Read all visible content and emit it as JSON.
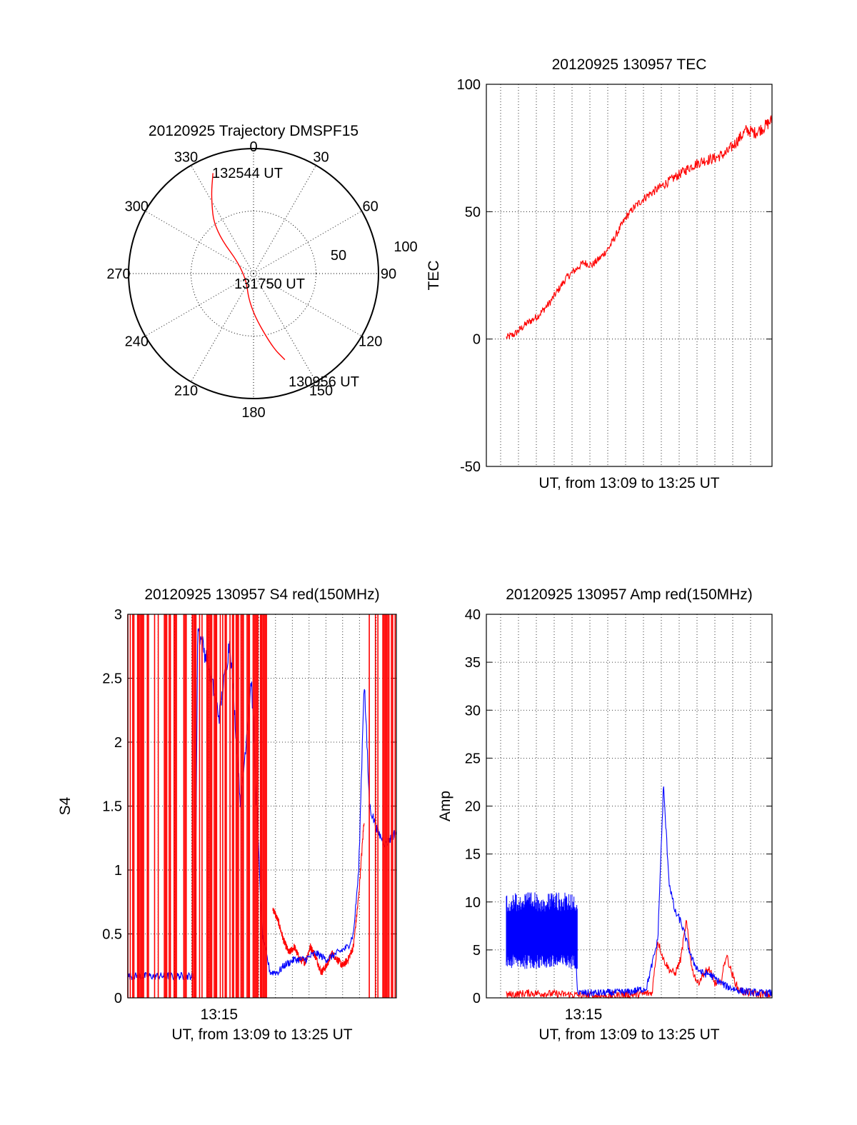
{
  "chart_data": [
    {
      "type": "polar",
      "title": "20120925 Trajectory DMSPF15",
      "angle_ticks": [
        "0",
        "30",
        "60",
        "90",
        "120",
        "150",
        "180",
        "210",
        "240",
        "270",
        "300",
        "330"
      ],
      "radial_ticks": [
        "50",
        "100"
      ],
      "trajectory": {
        "color": "#ff0000",
        "points": [
          {
            "az": 338,
            "el": 12
          },
          {
            "az": 331,
            "el": 27
          },
          {
            "az": 318,
            "el": 48
          },
          {
            "az": 280,
            "el": 84
          },
          {
            "az": 187,
            "el": 66
          },
          {
            "az": 166,
            "el": 36
          },
          {
            "az": 160,
            "el": 24
          }
        ]
      },
      "annotations": [
        "132544 UT",
        "131750 UT",
        "130956 UT"
      ]
    },
    {
      "type": "line",
      "title": "20120925 130957 TEC",
      "xlabel": "UT, from 13:09 to 13:25 UT",
      "ylabel": "TEC",
      "xlim": [
        0,
        1
      ],
      "ylim": [
        -50,
        100
      ],
      "yticks": [
        "-50",
        "0",
        "50",
        "100"
      ],
      "grid": true,
      "series": [
        {
          "color": "#ff0000",
          "x": [
            0.07,
            0.1,
            0.14,
            0.18,
            0.22,
            0.25,
            0.28,
            0.31,
            0.34,
            0.37,
            0.4,
            0.43,
            0.46,
            0.49,
            0.52,
            0.56,
            0.6,
            0.64,
            0.68,
            0.72,
            0.76,
            0.8,
            0.84,
            0.88,
            0.91,
            0.94,
            0.97,
            1.0
          ],
          "y": [
            0.5,
            2,
            6,
            9,
            14,
            19,
            24,
            27,
            30,
            29,
            32,
            36,
            42,
            48,
            52,
            56,
            59,
            62,
            65,
            68,
            70,
            71,
            73,
            78,
            82,
            81,
            83,
            86
          ]
        }
      ]
    },
    {
      "type": "line",
      "title": "20120925 130957 S4 red(150MHz)",
      "xlabel": "UT, from 13:09 to 13:25 UT",
      "ylabel": "S4",
      "xtick_labels": [
        "13:15"
      ],
      "xlim": [
        0,
        1
      ],
      "ylim": [
        0,
        3
      ],
      "yticks": [
        "0",
        "0.5",
        "1",
        "1.5",
        "2",
        "2.5",
        "3"
      ],
      "grid": true,
      "series": [
        {
          "color": "#ff0000",
          "x": [
            0.54,
            0.56,
            0.58,
            0.6,
            0.62,
            0.64,
            0.66,
            0.68,
            0.7,
            0.72,
            0.74,
            0.76,
            0.78,
            0.8,
            0.82,
            0.84,
            0.86,
            0.88
          ],
          "y": [
            0.7,
            0.6,
            0.45,
            0.35,
            0.4,
            0.3,
            0.28,
            0.4,
            0.32,
            0.2,
            0.25,
            0.35,
            0.3,
            0.25,
            0.3,
            0.4,
            0.8,
            1.4
          ]
        },
        {
          "color": "#0000ff",
          "x": [
            0.0,
            0.05,
            0.1,
            0.15,
            0.2,
            0.25,
            0.26,
            0.3,
            0.34,
            0.38,
            0.42,
            0.46,
            0.5,
            0.53,
            0.56,
            0.58,
            0.62,
            0.66,
            0.7,
            0.74,
            0.78,
            0.82,
            0.84,
            0.86,
            0.88,
            0.9,
            0.93,
            0.96,
            1.0
          ],
          "y": [
            0.17,
            0.17,
            0.17,
            0.17,
            0.17,
            0.17,
            2.9,
            2.6,
            2.2,
            2.8,
            1.5,
            2.5,
            0.5,
            0.2,
            0.2,
            0.25,
            0.3,
            0.3,
            0.35,
            0.3,
            0.35,
            0.4,
            0.5,
            1.0,
            2.5,
            1.5,
            1.3,
            1.2,
            1.3
          ]
        }
      ],
      "saturated_red_bands": [
        [
          0.0,
          0.53
        ],
        [
          0.89,
          1.0
        ]
      ]
    },
    {
      "type": "line",
      "title": "20120925 130957 Amp red(150MHz)",
      "xlabel": "UT, from 13:09 to 13:25 UT",
      "ylabel": "Amp",
      "xtick_labels": [
        "13:15"
      ],
      "xlim": [
        0,
        1
      ],
      "ylim": [
        0,
        40
      ],
      "yticks": [
        "0",
        "5",
        "10",
        "15",
        "20",
        "25",
        "30",
        "35",
        "40"
      ],
      "grid": true,
      "series": [
        {
          "color": "#ff0000",
          "x": [
            0.07,
            0.15,
            0.25,
            0.31,
            0.4,
            0.5,
            0.58,
            0.6,
            0.62,
            0.64,
            0.66,
            0.68,
            0.7,
            0.72,
            0.74,
            0.76,
            0.78,
            0.8,
            0.82,
            0.84,
            0.86,
            0.88,
            0.9,
            0.95,
            1.0
          ],
          "y": [
            0.3,
            0.5,
            0.4,
            0.3,
            0.2,
            0.3,
            0.5,
            6,
            4,
            3,
            2.5,
            4,
            8,
            3,
            1.5,
            2.5,
            3,
            1.5,
            1.5,
            4.5,
            2.5,
            1,
            0.6,
            0.4,
            0.3
          ]
        },
        {
          "color": "#0000ff",
          "x": [
            0.07,
            0.1,
            0.15,
            0.2,
            0.25,
            0.31,
            0.32,
            0.4,
            0.5,
            0.56,
            0.6,
            0.62,
            0.64,
            0.66,
            0.68,
            0.7,
            0.72,
            0.74,
            0.76,
            0.78,
            0.8,
            0.84,
            0.88,
            0.92,
            0.96,
            1.0
          ],
          "y": [
            7,
            8,
            7.5,
            7,
            6.5,
            6,
            0.5,
            0.5,
            0.6,
            1,
            6,
            22,
            12,
            9,
            8,
            6,
            4,
            3,
            2.5,
            2.5,
            2,
            1.2,
            0.8,
            0.6,
            0.5,
            0.5
          ]
        }
      ],
      "noise_envelopes": [
        {
          "color": "#0000ff",
          "x": [
            0.07,
            0.32
          ],
          "y": [
            3,
            11
          ]
        }
      ]
    }
  ]
}
